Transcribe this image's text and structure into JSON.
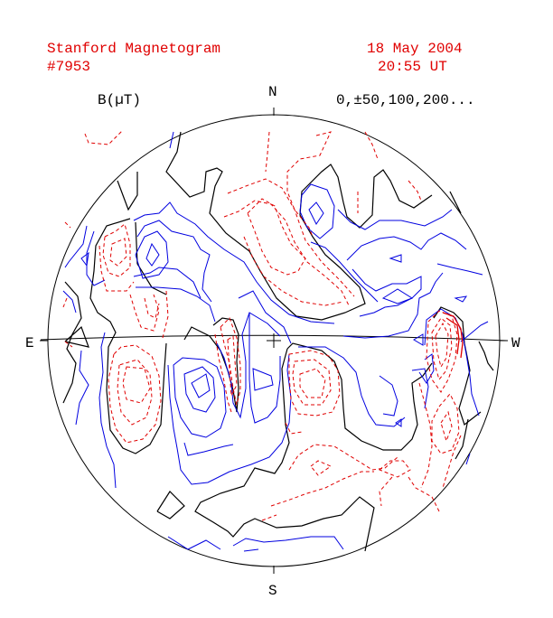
{
  "header": {
    "title": "Stanford Magnetogram",
    "number": "#7953",
    "date": "18 May  2004",
    "time": "20:55 UT"
  },
  "legend": {
    "unit_label": "B(µT)",
    "levels_label": "0,±50,100,200..."
  },
  "compass": {
    "north": "N",
    "south": "S",
    "east": "E",
    "west": "W"
  },
  "colors": {
    "header_text": "#e00000",
    "positive_contour": "#e00000",
    "negative_contour": "#0000e0",
    "neutral_line": "#000000"
  }
}
